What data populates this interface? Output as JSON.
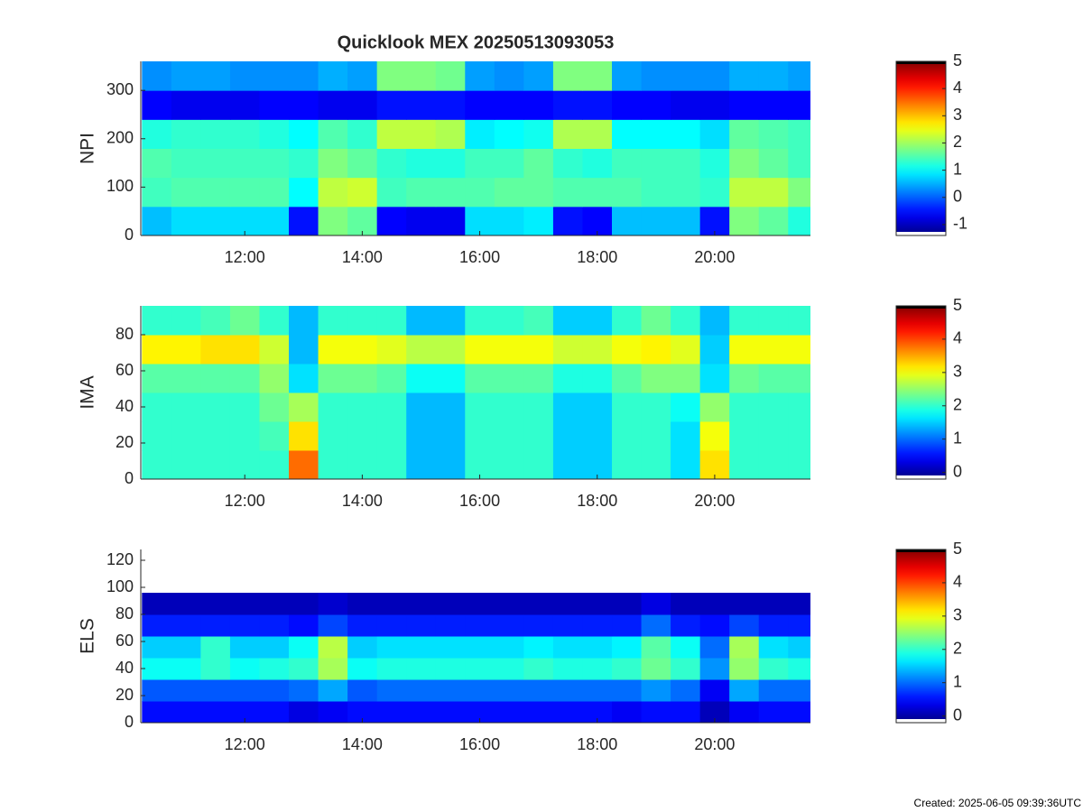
{
  "created": "Created: 2025-06-05 09:39:36UTC",
  "chart_data": [
    {
      "type": "heatmap",
      "title": "Quicklook MEX 20250513093053",
      "ylabel": "NPI",
      "colormap": "jet",
      "xlim": [
        10.23,
        21.63
      ],
      "xticks": [
        {
          "value": 12,
          "label": "12:00"
        },
        {
          "value": 14,
          "label": "14:00"
        },
        {
          "value": 16,
          "label": "16:00"
        },
        {
          "value": 18,
          "label": "18:00"
        },
        {
          "value": 20,
          "label": "20:00"
        }
      ],
      "ylim": [
        0,
        360
      ],
      "yticks": [
        0,
        100,
        200,
        300
      ],
      "clim": [
        -1.4,
        5
      ],
      "cticks": [
        -1,
        0,
        1,
        2,
        3,
        4,
        5
      ],
      "x": [
        10.5,
        11,
        11.5,
        12,
        12.5,
        13,
        13.5,
        14,
        14.5,
        15,
        15.5,
        16,
        16.5,
        17,
        17.5,
        18,
        18.5,
        19,
        19.5,
        20,
        20.5,
        21,
        21.5
      ],
      "y": [
        30,
        90,
        150,
        210,
        270,
        330
      ],
      "values": [
        [
          0.6,
          0.8,
          0.8,
          0.8,
          0.8,
          -0.5,
          1.8,
          1.6,
          -0.6,
          -0.7,
          -0.7,
          0.8,
          0.8,
          0.9,
          -0.5,
          -0.6,
          0.6,
          0.6,
          0.6,
          -0.5,
          1.8,
          1.6,
          1.2
        ],
        [
          1.4,
          1.5,
          1.5,
          1.5,
          1.5,
          1.0,
          2.2,
          2.3,
          1.4,
          1.5,
          1.5,
          1.5,
          1.6,
          1.6,
          1.5,
          1.5,
          1.5,
          1.4,
          1.4,
          1.3,
          2.2,
          2.2,
          1.8
        ],
        [
          1.5,
          1.4,
          1.4,
          1.4,
          1.4,
          1.3,
          1.8,
          1.6,
          1.3,
          1.2,
          1.2,
          1.4,
          1.4,
          1.6,
          1.3,
          1.2,
          1.4,
          1.4,
          1.4,
          1.2,
          1.8,
          1.6,
          1.4
        ],
        [
          1.2,
          1.3,
          1.3,
          1.3,
          1.2,
          1.0,
          1.5,
          1.3,
          2.2,
          2.2,
          2.1,
          0.9,
          1.0,
          1.1,
          2.1,
          2.1,
          1.0,
          1.0,
          1.0,
          0.8,
          1.6,
          1.5,
          1.4
        ],
        [
          -0.6,
          -0.7,
          -0.7,
          -0.7,
          -0.6,
          -0.6,
          -0.7,
          -0.7,
          -0.5,
          -0.5,
          -0.5,
          -0.6,
          -0.6,
          -0.6,
          -0.5,
          -0.5,
          -0.6,
          -0.6,
          -0.7,
          -0.7,
          -0.6,
          -0.6,
          -0.6
        ],
        [
          0.3,
          0.4,
          0.4,
          0.3,
          0.3,
          0.3,
          0.5,
          0.4,
          1.8,
          1.8,
          1.7,
          0.4,
          0.3,
          0.4,
          1.8,
          1.8,
          0.4,
          0.3,
          0.3,
          0.3,
          0.5,
          0.5,
          0.4
        ]
      ]
    },
    {
      "type": "heatmap",
      "ylabel": "IMA",
      "colormap": "jet",
      "xlim": [
        10.23,
        21.63
      ],
      "xticks": [
        {
          "value": 12,
          "label": "12:00"
        },
        {
          "value": 14,
          "label": "14:00"
        },
        {
          "value": 16,
          "label": "16:00"
        },
        {
          "value": 18,
          "label": "18:00"
        },
        {
          "value": 20,
          "label": "20:00"
        }
      ],
      "ylim": [
        0,
        96
      ],
      "yticks": [
        0,
        20,
        40,
        60,
        80
      ],
      "clim": [
        -0.2,
        5
      ],
      "cticks": [
        0,
        1,
        2,
        3,
        4,
        5
      ],
      "x": [
        10.5,
        11,
        11.5,
        12,
        12.5,
        13,
        13.5,
        14,
        14.5,
        15,
        15.5,
        16,
        16.5,
        17,
        17.5,
        18,
        18.5,
        19,
        19.5,
        20,
        20.5,
        21,
        21.5
      ],
      "y": [
        8,
        24,
        40,
        56,
        72,
        88
      ],
      "values": [
        [
          2,
          2,
          2,
          2,
          2,
          3.8,
          2,
          2,
          2,
          1.4,
          1.4,
          2,
          2,
          2,
          1.5,
          1.5,
          2,
          2,
          1.6,
          3.2,
          2,
          2,
          2
        ],
        [
          2,
          2,
          2,
          2,
          2.1,
          3.2,
          2,
          2,
          2,
          1.4,
          1.4,
          2,
          2,
          2,
          1.5,
          1.5,
          2,
          2,
          1.6,
          3.0,
          2,
          2,
          2
        ],
        [
          2,
          2,
          2,
          2,
          2.3,
          2.6,
          2,
          2,
          2,
          1.4,
          1.4,
          2,
          2,
          2,
          1.5,
          1.5,
          2,
          2,
          1.8,
          2.5,
          2,
          2,
          2
        ],
        [
          2.2,
          2.2,
          2.2,
          2.2,
          2.5,
          1.6,
          2.3,
          2.3,
          2.2,
          1.8,
          1.8,
          2.2,
          2.2,
          2.2,
          1.9,
          1.9,
          2.2,
          2.4,
          2.4,
          1.6,
          2.3,
          2.2,
          2.2
        ],
        [
          3.1,
          3.1,
          3.2,
          3.2,
          2.8,
          1.4,
          3.0,
          3.0,
          2.9,
          2.7,
          2.7,
          3.0,
          3.0,
          3.0,
          2.8,
          2.8,
          3.0,
          3.1,
          2.9,
          1.5,
          3.0,
          3.0,
          3.0
        ],
        [
          2,
          2,
          2.1,
          2.3,
          2,
          1.4,
          2,
          2,
          2,
          1.4,
          1.4,
          2,
          2,
          2.1,
          1.5,
          1.5,
          2,
          2.3,
          2,
          1.4,
          2,
          2,
          2
        ]
      ]
    },
    {
      "type": "heatmap",
      "ylabel": "ELS",
      "colormap": "jet",
      "xlim": [
        10.23,
        21.63
      ],
      "xticks": [
        {
          "value": 12,
          "label": "12:00"
        },
        {
          "value": 14,
          "label": "14:00"
        },
        {
          "value": 16,
          "label": "16:00"
        },
        {
          "value": 18,
          "label": "18:00"
        },
        {
          "value": 20,
          "label": "20:00"
        }
      ],
      "ylim": [
        0,
        128
      ],
      "yticks": [
        0,
        20,
        40,
        60,
        80,
        100,
        120
      ],
      "clim": [
        -0.2,
        5
      ],
      "cticks": [
        0,
        1,
        2,
        3,
        4,
        5
      ],
      "x": [
        10.5,
        11,
        11.5,
        12,
        12.5,
        13,
        13.5,
        14,
        14.5,
        15,
        15.5,
        16,
        16.5,
        17,
        17.5,
        18,
        18.5,
        19,
        19.5,
        20,
        20.5,
        21,
        21.5
      ],
      "y": [
        8,
        24,
        40,
        56,
        72,
        88
      ],
      "values": [
        [
          0.5,
          0.5,
          0.5,
          0.5,
          0.5,
          0.3,
          0.4,
          0.5,
          0.5,
          0.5,
          0.5,
          0.5,
          0.5,
          0.5,
          0.5,
          0.5,
          0.4,
          0.5,
          0.5,
          0.1,
          0.4,
          0.5,
          0.5
        ],
        [
          0.9,
          0.9,
          0.9,
          0.9,
          0.9,
          1.0,
          1.3,
          0.9,
          1.0,
          1.0,
          1.0,
          1.0,
          1.0,
          1.0,
          1.0,
          1.0,
          1.0,
          1.2,
          1.0,
          0.4,
          1.3,
          1.0,
          1.0
        ],
        [
          1.8,
          1.8,
          2.0,
          1.8,
          1.9,
          2.0,
          2.6,
          1.8,
          1.9,
          1.9,
          1.9,
          1.9,
          1.9,
          2.0,
          1.9,
          1.9,
          2.0,
          2.3,
          2.0,
          1.2,
          2.5,
          2.0,
          1.9
        ],
        [
          1.5,
          1.5,
          2.0,
          1.5,
          1.5,
          1.8,
          2.7,
          1.5,
          1.6,
          1.6,
          1.6,
          1.6,
          1.6,
          1.7,
          1.6,
          1.6,
          1.7,
          2.2,
          1.8,
          1.0,
          2.6,
          1.6,
          1.5
        ],
        [
          0.6,
          0.6,
          0.6,
          0.6,
          0.6,
          0.5,
          0.8,
          0.6,
          0.6,
          0.6,
          0.6,
          0.6,
          0.6,
          0.6,
          0.6,
          0.6,
          0.6,
          1.0,
          0.6,
          0.5,
          0.8,
          0.6,
          0.6
        ],
        [
          0.1,
          0.1,
          0.1,
          0.1,
          0.1,
          0.1,
          0.2,
          0.1,
          0.1,
          0.1,
          0.1,
          0.1,
          0.1,
          0.1,
          0.1,
          0.1,
          0.1,
          0.3,
          0.1,
          0.1,
          0.1,
          0.1,
          0.1
        ]
      ]
    }
  ]
}
